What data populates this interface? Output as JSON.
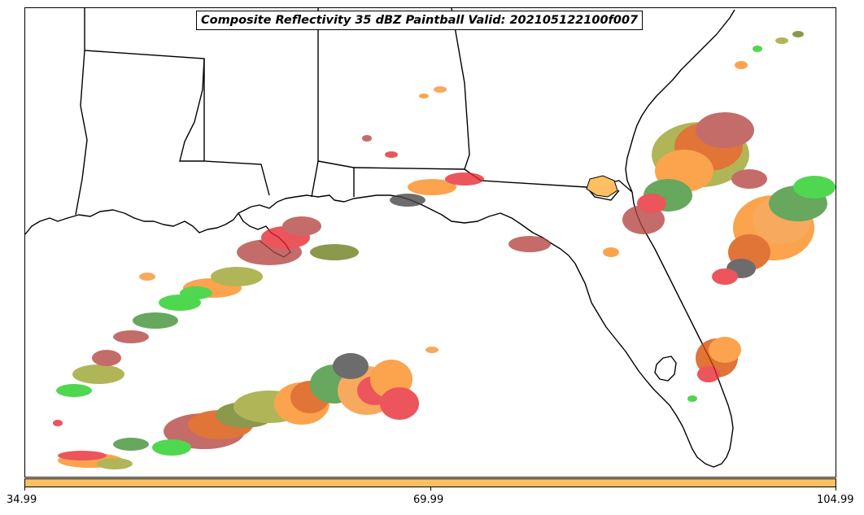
{
  "title": "Composite Reflectivity 35 dBZ Paintball Valid: 202105122100f007",
  "colorbar": {
    "color": "#fdbf5f",
    "ticks": [
      "34.99",
      "69.99",
      "104.99"
    ]
  },
  "map": {
    "region": "Southeastern United States and Gulf of Mexico",
    "features": [
      "coastline",
      "state-borders"
    ],
    "member_colors": [
      "#e6262e",
      "#fb8a1c",
      "#b4443f",
      "#3d8f32",
      "#6a7d1a",
      "#9aa22a",
      "#1fcc1f",
      "#444444",
      "#f59231",
      "#d94e00"
    ]
  }
}
